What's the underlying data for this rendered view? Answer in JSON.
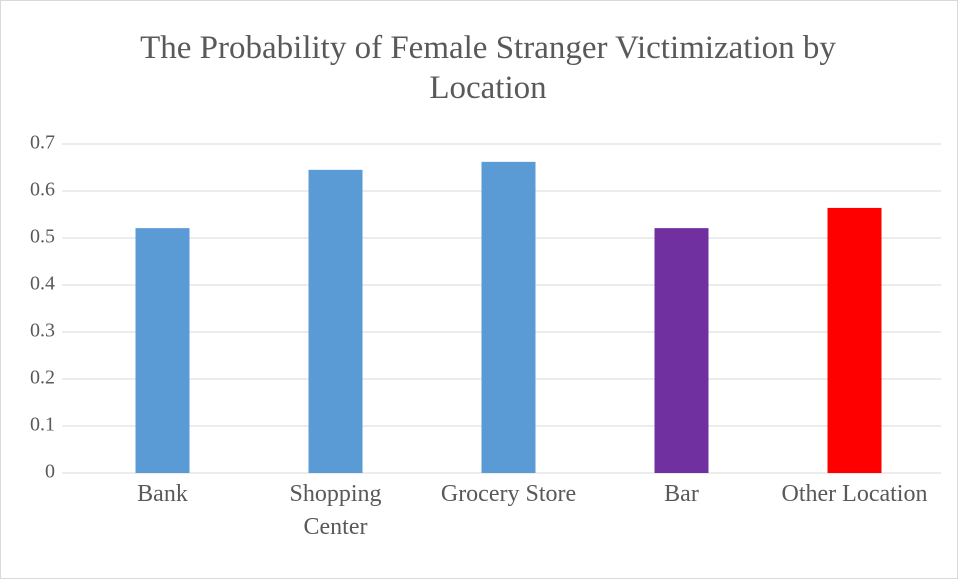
{
  "chart_data": {
    "type": "bar",
    "title": "The Probability of Female Stranger Victimization by Location",
    "categories": [
      "Bank",
      "Shopping Center",
      "Grocery Store",
      "Bar",
      "Other Location"
    ],
    "values": [
      0.521,
      0.645,
      0.662,
      0.521,
      0.564
    ],
    "colors": [
      "#5b9bd5",
      "#5b9bd5",
      "#5b9bd5",
      "#7030a0",
      "#ff0000"
    ],
    "ylim": [
      0,
      0.7
    ],
    "yticks": [
      0,
      0.1,
      0.2,
      0.3,
      0.4,
      0.5,
      0.6,
      0.7
    ],
    "grid": true
  }
}
